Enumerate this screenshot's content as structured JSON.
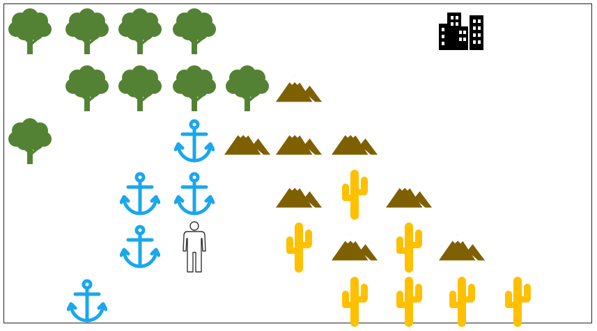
{
  "board": {
    "rows": 6,
    "cols": 11,
    "colors": {
      "tree": "#548235",
      "mountain": "#7f6000",
      "mountain_snow": "#ffffff",
      "anchor": "#1aa7ec",
      "cactus": "#ffc000",
      "city": "#000000",
      "person_stroke": "#333333",
      "person_fill": "#ffffff"
    },
    "tiles": [
      {
        "row": 0,
        "col": 0,
        "type": "tree"
      },
      {
        "row": 0,
        "col": 1,
        "type": "tree"
      },
      {
        "row": 0,
        "col": 2,
        "type": "tree"
      },
      {
        "row": 0,
        "col": 3,
        "type": "tree"
      },
      {
        "row": 0,
        "col": 8,
        "type": "city"
      },
      {
        "row": 1,
        "col": 1,
        "type": "tree"
      },
      {
        "row": 1,
        "col": 2,
        "type": "tree"
      },
      {
        "row": 1,
        "col": 3,
        "type": "tree"
      },
      {
        "row": 1,
        "col": 4,
        "type": "tree"
      },
      {
        "row": 1,
        "col": 5,
        "type": "mountain"
      },
      {
        "row": 2,
        "col": 0,
        "type": "tree"
      },
      {
        "row": 2,
        "col": 3,
        "type": "anchor"
      },
      {
        "row": 2,
        "col": 4,
        "type": "mountain"
      },
      {
        "row": 2,
        "col": 5,
        "type": "mountain"
      },
      {
        "row": 2,
        "col": 6,
        "type": "mountain"
      },
      {
        "row": 3,
        "col": 2,
        "type": "anchor"
      },
      {
        "row": 3,
        "col": 3,
        "type": "anchor"
      },
      {
        "row": 3,
        "col": 5,
        "type": "mountain"
      },
      {
        "row": 3,
        "col": 6,
        "type": "cactus"
      },
      {
        "row": 3,
        "col": 7,
        "type": "mountain"
      },
      {
        "row": 4,
        "col": 2,
        "type": "anchor"
      },
      {
        "row": 4,
        "col": 3,
        "type": "person"
      },
      {
        "row": 4,
        "col": 5,
        "type": "cactus"
      },
      {
        "row": 4,
        "col": 6,
        "type": "mountain"
      },
      {
        "row": 4,
        "col": 7,
        "type": "cactus"
      },
      {
        "row": 4,
        "col": 8,
        "type": "mountain"
      },
      {
        "row": 5,
        "col": 1,
        "type": "anchor"
      },
      {
        "row": 5,
        "col": 6,
        "type": "cactus"
      },
      {
        "row": 5,
        "col": 7,
        "type": "cactus"
      },
      {
        "row": 5,
        "col": 8,
        "type": "cactus"
      },
      {
        "row": 5,
        "col": 9,
        "type": "cactus"
      }
    ]
  }
}
